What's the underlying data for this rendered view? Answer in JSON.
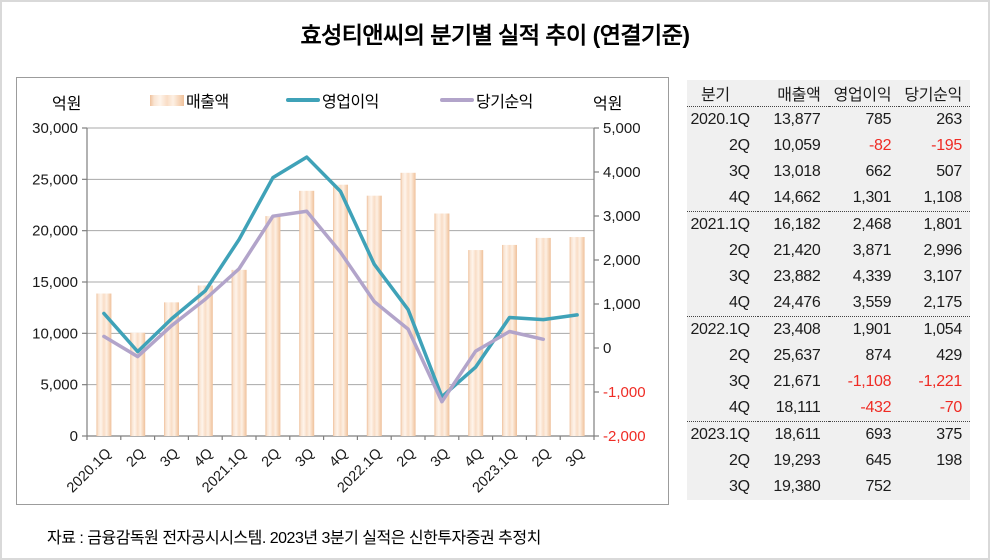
{
  "title": "효성티앤씨의 분기별 실적 추이 (연결기준)",
  "source_note": "자료 : 금융감독원 전자공시시스템. 2023년 3분기 실적은 신한투자증권 추정치",
  "chart_data": {
    "type": "bar",
    "subtype": "combo-bar-line-dual-axis",
    "title": "",
    "categories": [
      "2020.1Q",
      "2Q",
      "3Q",
      "4Q",
      "2021.1Q",
      "2Q",
      "3Q",
      "4Q",
      "2022.1Q",
      "2Q",
      "3Q",
      "4Q",
      "2023.1Q",
      "2Q",
      "3Q"
    ],
    "series": [
      {
        "name": "매출액",
        "type": "bar",
        "axis": "left",
        "values": [
          13877,
          10059,
          13018,
          14662,
          16182,
          21420,
          23882,
          24476,
          23408,
          25637,
          21671,
          18111,
          18611,
          19293,
          19380
        ]
      },
      {
        "name": "영업이익",
        "type": "line",
        "axis": "right",
        "values": [
          785,
          -82,
          662,
          1301,
          2468,
          3871,
          4339,
          3559,
          1901,
          874,
          -1108,
          -432,
          693,
          645,
          752
        ]
      },
      {
        "name": "당기순익",
        "type": "line",
        "axis": "right",
        "values": [
          263,
          -195,
          507,
          1108,
          1801,
          2996,
          3107,
          2175,
          1054,
          429,
          -1221,
          -70,
          375,
          198,
          null
        ]
      }
    ],
    "left_axis": {
      "label": "억원",
      "min": 0,
      "max": 30000,
      "step": 5000
    },
    "right_axis": {
      "label": "억원",
      "min": -2000,
      "max": 5000,
      "step": 1000
    },
    "grid": "horizontal gridlines at left-axis steps",
    "legend_position": "top"
  },
  "table": {
    "headers": [
      "분기",
      "매출액",
      "영업이익",
      "당기순익"
    ],
    "rows": [
      [
        "2020.1Q",
        "13,877",
        "785",
        "263"
      ],
      [
        "2Q",
        "10,059",
        "-82",
        "-195"
      ],
      [
        "3Q",
        "13,018",
        "662",
        "507"
      ],
      [
        "4Q",
        "14,662",
        "1,301",
        "1,108"
      ],
      [
        "2021.1Q",
        "16,182",
        "2,468",
        "1,801"
      ],
      [
        "2Q",
        "21,420",
        "3,871",
        "2,996"
      ],
      [
        "3Q",
        "23,882",
        "4,339",
        "3,107"
      ],
      [
        "4Q",
        "24,476",
        "3,559",
        "2,175"
      ],
      [
        "2022.1Q",
        "23,408",
        "1,901",
        "1,054"
      ],
      [
        "2Q",
        "25,637",
        "874",
        "429"
      ],
      [
        "3Q",
        "21,671",
        "-1,108",
        "-1,221"
      ],
      [
        "4Q",
        "18,111",
        "-432",
        "-70"
      ],
      [
        "2023.1Q",
        "18,611",
        "693",
        "375"
      ],
      [
        "2Q",
        "19,293",
        "645",
        "198"
      ],
      [
        "3Q",
        "19,380",
        "752",
        ""
      ]
    ]
  },
  "colors": {
    "bar_edge": "#EFC19C",
    "bar_light": "#FEF4EB",
    "operating_profit_line": "#3FA2B8",
    "net_profit_line": "#B2A4CA",
    "negative_text": "#EF2B24",
    "axis_text": "#1a1a1a",
    "gridline": "#a8a8a8",
    "axis_line": "#7f7f7f",
    "table_background": "#F0F0F0"
  }
}
